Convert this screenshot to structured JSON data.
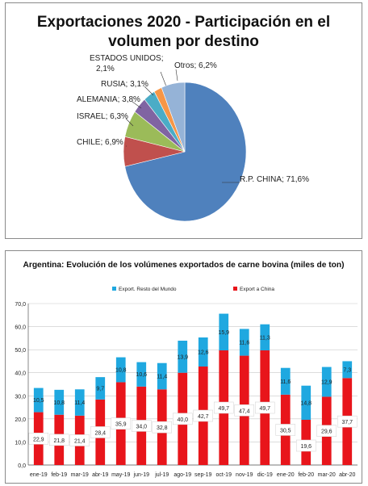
{
  "chart_data": [
    {
      "type": "pie",
      "title": "Exportaciones 2020 - Participación en el volumen por destino",
      "slices": [
        {
          "label": "R.P. CHINA; 71,6%",
          "value": 71.6,
          "color": "#4F81BD"
        },
        {
          "label": "CHILE; 6,9%",
          "value": 6.9,
          "color": "#C0504D"
        },
        {
          "label": "ISRAEL; 6,3%",
          "value": 6.3,
          "color": "#9BBB59"
        },
        {
          "label": "ALEMANIA; 3,8%",
          "value": 3.8,
          "color": "#8064A2"
        },
        {
          "label": "RUSIA; 3,1%",
          "value": 3.1,
          "color": "#4BACC6"
        },
        {
          "label": "ESTADOS UNIDOS; 2,1%",
          "value": 2.1,
          "color": "#F79646"
        },
        {
          "label": "Otros; 6,2%",
          "value": 6.2,
          "color": "#95B3D7"
        }
      ]
    },
    {
      "type": "bar",
      "stacked": true,
      "title": "Argentina: Evolución de los volúmenes exportados de carne bovina (miles de ton)",
      "categories": [
        "ene-19",
        "feb-19",
        "mar-19",
        "abr-19",
        "may-19",
        "jun-19",
        "jul-19",
        "ago-19",
        "sep-19",
        "oct-19",
        "nov-19",
        "dic-19",
        "ene-20",
        "feb-20",
        "mar-20",
        "abr-20"
      ],
      "series": [
        {
          "name": "Export a China",
          "color": "#E8151B",
          "values": [
            22.9,
            21.8,
            21.4,
            28.4,
            35.9,
            34.0,
            32.8,
            40.0,
            42.7,
            49.7,
            47.4,
            49.7,
            30.5,
            19.6,
            29.6,
            37.7
          ],
          "labels": [
            "22,9",
            "21,8",
            "21,4",
            "28,4",
            "35,9",
            "34,0",
            "32,8",
            "40,0",
            "42,7",
            "49,7",
            "47,4",
            "49,7",
            "30,5",
            "19,6",
            "29,6",
            "37,7"
          ]
        },
        {
          "name": "Export. Resto del Mundo",
          "color": "#1FA8E0",
          "values": [
            10.5,
            10.8,
            11.4,
            9.7,
            10.8,
            10.6,
            11.4,
            13.9,
            12.6,
            15.9,
            11.6,
            11.3,
            11.6,
            14.8,
            12.9,
            7.3
          ],
          "labels": [
            "10,5",
            "10,8",
            "11,4",
            "9,7",
            "10,8",
            "10,6",
            "11,4",
            "13,9",
            "12,6",
            "15,9",
            "11,6",
            "11,3",
            "11,6",
            "14,8",
            "12,9",
            "7,3"
          ]
        }
      ],
      "ylim": [
        0,
        70
      ],
      "yticks": [
        "0,0",
        "10,0",
        "20,0",
        "30,0",
        "40,0",
        "50,0",
        "60,0",
        "70,0"
      ],
      "legend": "top",
      "grid": true
    }
  ]
}
